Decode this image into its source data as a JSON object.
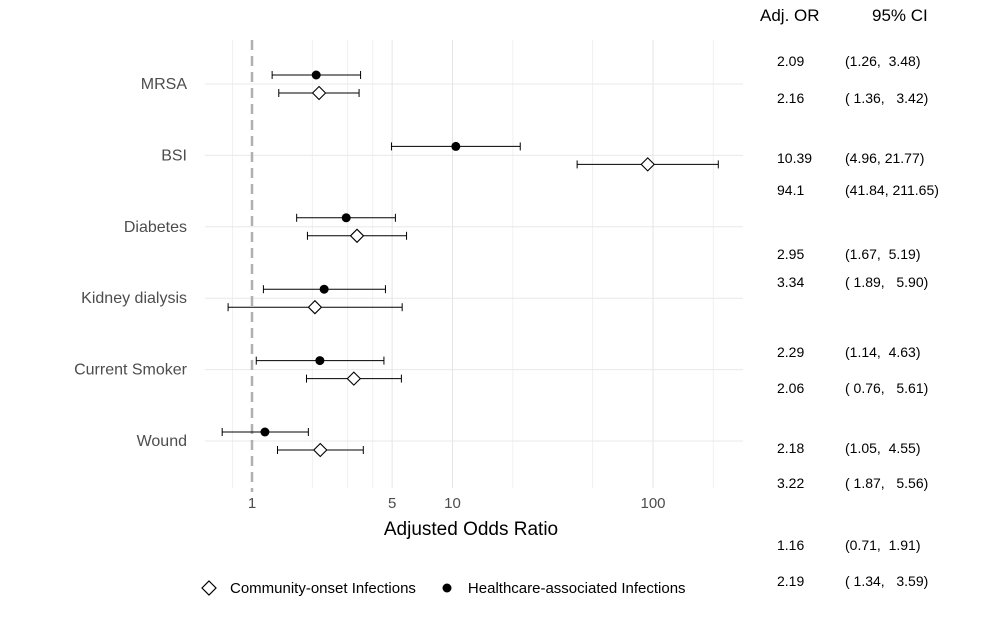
{
  "chart_data": {
    "type": "scatter",
    "subtype": "forest-plot",
    "xlabel": "Adjusted Odds Ratio",
    "x_scale": "log",
    "xlim": [
      0.8,
      250
    ],
    "x_ticks": [
      1,
      5,
      10,
      100
    ],
    "x_tick_labels": [
      "1",
      "5",
      "10",
      "100"
    ],
    "reference_line": 1,
    "grid": true,
    "legend_position": "bottom",
    "categories": [
      "MRSA",
      "BSI",
      "Diabetes",
      "Kidney dialysis",
      "Current Smoker",
      "Wound"
    ],
    "series": [
      {
        "name": "Healthcare-associated Infections",
        "marker": "filled-circle",
        "color": "#000000",
        "points": [
          {
            "category": "MRSA",
            "or": 2.09,
            "lower": 1.26,
            "upper": 3.48
          },
          {
            "category": "BSI",
            "or": 10.39,
            "lower": 4.96,
            "upper": 21.77
          },
          {
            "category": "Diabetes",
            "or": 2.95,
            "lower": 1.67,
            "upper": 5.19
          },
          {
            "category": "Kidney dialysis",
            "or": 2.29,
            "lower": 1.14,
            "upper": 4.63
          },
          {
            "category": "Current Smoker",
            "or": 2.18,
            "lower": 1.05,
            "upper": 4.55
          },
          {
            "category": "Wound",
            "or": 1.16,
            "lower": 0.71,
            "upper": 1.91
          }
        ]
      },
      {
        "name": "Community-onset Infections",
        "marker": "open-diamond",
        "color": "#000000",
        "points": [
          {
            "category": "MRSA",
            "or": 2.16,
            "lower": 1.36,
            "upper": 3.42
          },
          {
            "category": "BSI",
            "or": 94.1,
            "lower": 41.84,
            "upper": 211.65
          },
          {
            "category": "Diabetes",
            "or": 3.34,
            "lower": 1.89,
            "upper": 5.9
          },
          {
            "category": "Kidney dialysis",
            "or": 2.06,
            "lower": 0.76,
            "upper": 5.61
          },
          {
            "category": "Current Smoker",
            "or": 3.22,
            "lower": 1.87,
            "upper": 5.56
          },
          {
            "category": "Wound",
            "or": 2.19,
            "lower": 1.34,
            "upper": 3.59
          }
        ]
      }
    ]
  },
  "table": {
    "header_or": "Adj. OR",
    "header_ci": "95% CI",
    "rows": [
      {
        "or": "2.09",
        "ci": "(1.26,  3.48)"
      },
      {
        "or": "2.16",
        "ci": "( 1.36,   3.42)"
      },
      {
        "or": "10.39",
        "ci": "(4.96, 21.77)"
      },
      {
        "or": "94.1",
        "ci": "(41.84, 211.65)"
      },
      {
        "or": "2.95",
        "ci": "(1.67,  5.19)"
      },
      {
        "or": "3.34",
        "ci": "( 1.89,   5.90)"
      },
      {
        "or": "2.29",
        "ci": "(1.14,  4.63)"
      },
      {
        "or": "2.06",
        "ci": "( 0.76,   5.61)"
      },
      {
        "or": "2.18",
        "ci": "(1.05,  4.55)"
      },
      {
        "or": "3.22",
        "ci": "( 1.87,   5.56)"
      },
      {
        "or": "1.16",
        "ci": "(0.71,  1.91)"
      },
      {
        "or": "2.19",
        "ci": "( 1.34,   3.59)"
      }
    ]
  },
  "legend": {
    "community_label": "Community-onset Infections",
    "healthcare_label": "Healthcare-associated Infections"
  }
}
